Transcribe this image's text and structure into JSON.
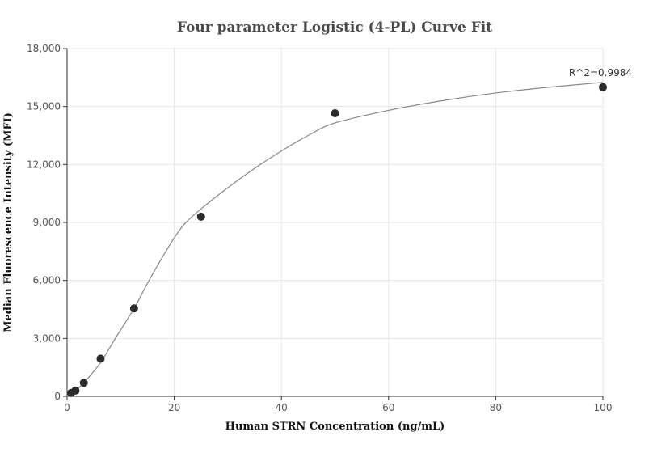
{
  "chart_data": {
    "type": "scatter",
    "title": "Four parameter Logistic (4-PL) Curve Fit",
    "xlabel": "Human STRN Concentration (ng/mL)",
    "ylabel": "Median Fluorescence Intensity (MFI)",
    "xlim": [
      0,
      100
    ],
    "ylim": [
      0,
      18000
    ],
    "xticks": [
      0,
      20,
      40,
      60,
      80,
      100
    ],
    "xtick_labels": [
      "0",
      "20",
      "40",
      "60",
      "80",
      "100"
    ],
    "yticks": [
      0,
      3000,
      6000,
      9000,
      12000,
      15000,
      18000
    ],
    "ytick_labels": [
      "0",
      "3,000",
      "6,000",
      "9,000",
      "12,000",
      "15,000",
      "18,000"
    ],
    "grid": true,
    "points": {
      "x": [
        0.78,
        1.56,
        3.125,
        6.25,
        12.5,
        25,
        50,
        100
      ],
      "y": [
        180,
        300,
        700,
        1950,
        4550,
        9300,
        14650,
        16000
      ]
    },
    "fit_curve": {
      "x": [
        0,
        1.56,
        3.125,
        6.25,
        9,
        12.5,
        15,
        18,
        20,
        22,
        25,
        30,
        35,
        40,
        45,
        50,
        60,
        70,
        80,
        90,
        100
      ],
      "y": [
        0,
        300,
        700,
        1750,
        3000,
        4550,
        5850,
        7300,
        8200,
        8950,
        9700,
        10800,
        11800,
        12700,
        13500,
        14150,
        14800,
        15300,
        15700,
        16000,
        16250
      ]
    },
    "annotations": [
      {
        "text": "R^2=0.9984",
        "x": 100,
        "y": 16250
      }
    ],
    "colors": {
      "points": "#2b2b2b",
      "curve": "#888888",
      "grid": "#e6e6e6"
    }
  }
}
